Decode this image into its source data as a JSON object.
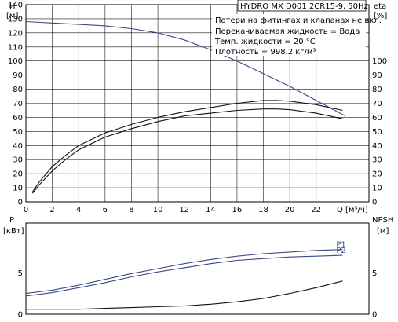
{
  "chart_data": [
    {
      "type": "line",
      "title": "HYDRO MX D001 2CR15-9, 50Hz",
      "annotations": [
        "Потери на фитингах и клапанах не вкл.",
        "Перекачиваемая жидкость = Вода",
        "Темп. жидкости = 20 °C",
        "Плотность = 998.2 кг/м³"
      ],
      "xlabel": "Q [м³/ч]",
      "left_axis": {
        "label_top": "H",
        "label_unit": "[м]",
        "ylim": [
          0,
          140
        ],
        "ticks": [
          0,
          10,
          20,
          30,
          40,
          50,
          60,
          70,
          80,
          90,
          100,
          110,
          120,
          130,
          140
        ]
      },
      "right_axis": {
        "label_top": "eta",
        "label_unit": "[%]",
        "ylim": [
          0,
          140
        ],
        "ticks": [
          0,
          10,
          20,
          30,
          40,
          50,
          60,
          70,
          80,
          90,
          100
        ]
      },
      "xlim": [
        0,
        26
      ],
      "x_ticks": [
        0,
        2,
        4,
        6,
        8,
        10,
        12,
        14,
        16,
        18,
        20,
        22
      ],
      "grid": true,
      "series": [
        {
          "axis": "left",
          "color": "#3b4a86",
          "points": [
            [
              0,
              128
            ],
            [
              2,
              127
            ],
            [
              4,
              126
            ],
            [
              6,
              125
            ],
            [
              8,
              123
            ],
            [
              10,
              120
            ],
            [
              12,
              115
            ],
            [
              14,
              108
            ],
            [
              16,
              100
            ],
            [
              18,
              91
            ],
            [
              20,
              82
            ],
            [
              22,
              72
            ],
            [
              24,
              62
            ],
            [
              24.2,
              61
            ]
          ]
        },
        {
          "axis": "right",
          "color": "#111111",
          "points": [
            [
              0.5,
              7
            ],
            [
              1,
              14
            ],
            [
              2,
              25
            ],
            [
              3,
              33
            ],
            [
              4,
              40
            ],
            [
              6,
              49
            ],
            [
              8,
              55
            ],
            [
              10,
              60
            ],
            [
              12,
              64
            ],
            [
              14,
              67
            ],
            [
              16,
              70
            ],
            [
              18,
              72
            ],
            [
              19,
              72
            ],
            [
              20,
              71.5
            ],
            [
              22,
              69
            ],
            [
              24,
              65
            ]
          ]
        },
        {
          "axis": "right",
          "color": "#111111",
          "points": [
            [
              0.5,
              6
            ],
            [
              1,
              12
            ],
            [
              2,
              22
            ],
            [
              3,
              30
            ],
            [
              4,
              37
            ],
            [
              6,
              46
            ],
            [
              8,
              52
            ],
            [
              10,
              57
            ],
            [
              12,
              61
            ],
            [
              14,
              63
            ],
            [
              16,
              65
            ],
            [
              18,
              66
            ],
            [
              19,
              66
            ],
            [
              20,
              65.5
            ],
            [
              22,
              63
            ],
            [
              24,
              59
            ]
          ]
        }
      ]
    },
    {
      "type": "line",
      "left_axis": {
        "label_top": "P",
        "label_unit": "[кВт]",
        "ylim": [
          0,
          11
        ],
        "ticks": [
          0,
          5
        ]
      },
      "right_axis": {
        "label_top": "NPSH",
        "label_unit": "[м]",
        "ylim": [
          0,
          11
        ],
        "ticks": [
          0,
          5
        ]
      },
      "xlim": [
        0,
        26
      ],
      "grid": false,
      "series": [
        {
          "name": "P1",
          "axis": "left",
          "color": "#3b4a86",
          "points": [
            [
              0,
              2.5
            ],
            [
              2,
              2.9
            ],
            [
              4,
              3.5
            ],
            [
              6,
              4.2
            ],
            [
              8,
              4.9
            ],
            [
              10,
              5.5
            ],
            [
              12,
              6.1
            ],
            [
              14,
              6.6
            ],
            [
              16,
              7.0
            ],
            [
              18,
              7.3
            ],
            [
              20,
              7.5
            ],
            [
              22,
              7.7
            ],
            [
              24,
              7.8
            ]
          ]
        },
        {
          "name": "P2",
          "axis": "left",
          "color": "#3b4a86",
          "points": [
            [
              0,
              2.2
            ],
            [
              2,
              2.6
            ],
            [
              4,
              3.2
            ],
            [
              6,
              3.8
            ],
            [
              8,
              4.5
            ],
            [
              10,
              5.1
            ],
            [
              12,
              5.6
            ],
            [
              14,
              6.1
            ],
            [
              16,
              6.5
            ],
            [
              18,
              6.7
            ],
            [
              20,
              6.9
            ],
            [
              22,
              7.0
            ],
            [
              24,
              7.1
            ]
          ]
        },
        {
          "axis": "right",
          "color": "#111111",
          "points": [
            [
              0,
              0.6
            ],
            [
              2,
              0.6
            ],
            [
              4,
              0.6
            ],
            [
              6,
              0.7
            ],
            [
              8,
              0.8
            ],
            [
              10,
              0.9
            ],
            [
              12,
              1.0
            ],
            [
              14,
              1.2
            ],
            [
              16,
              1.5
            ],
            [
              18,
              1.9
            ],
            [
              20,
              2.5
            ],
            [
              22,
              3.2
            ],
            [
              24,
              4.0
            ]
          ]
        }
      ]
    }
  ]
}
